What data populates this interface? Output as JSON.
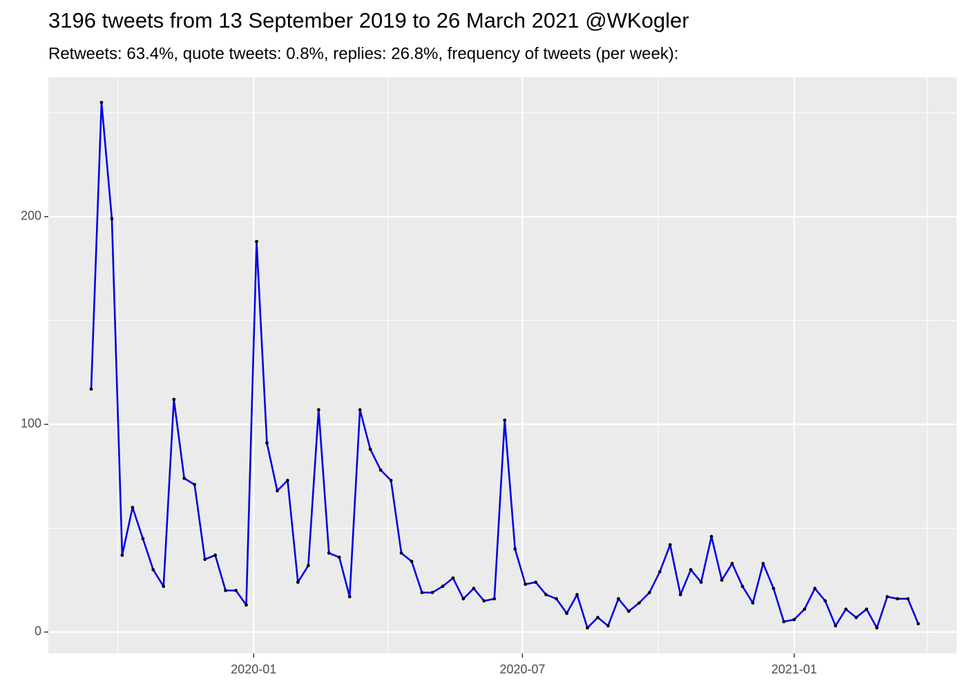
{
  "chart_data": {
    "type": "line",
    "title": "3196 tweets from 13 September 2019 to 26 March 2021 @WKogler",
    "subtitle": "Retweets: 63.4%, quote tweets: 0.8%, replies: 26.8%, frequency of tweets (per week):",
    "x": [
      "2019-09-13",
      "2019-09-20",
      "2019-09-27",
      "2019-10-04",
      "2019-10-11",
      "2019-10-18",
      "2019-10-25",
      "2019-11-01",
      "2019-11-08",
      "2019-11-15",
      "2019-11-22",
      "2019-11-29",
      "2019-12-06",
      "2019-12-13",
      "2019-12-20",
      "2019-12-27",
      "2020-01-03",
      "2020-01-10",
      "2020-01-17",
      "2020-01-24",
      "2020-01-31",
      "2020-02-07",
      "2020-02-14",
      "2020-02-21",
      "2020-02-28",
      "2020-03-06",
      "2020-03-13",
      "2020-03-20",
      "2020-03-27",
      "2020-04-03",
      "2020-04-10",
      "2020-04-17",
      "2020-04-24",
      "2020-05-01",
      "2020-05-08",
      "2020-05-15",
      "2020-05-22",
      "2020-05-29",
      "2020-06-05",
      "2020-06-12",
      "2020-06-19",
      "2020-06-26",
      "2020-07-03",
      "2020-07-10",
      "2020-07-17",
      "2020-07-24",
      "2020-07-31",
      "2020-08-07",
      "2020-08-14",
      "2020-08-21",
      "2020-08-28",
      "2020-09-04",
      "2020-09-11",
      "2020-09-18",
      "2020-09-25",
      "2020-10-02",
      "2020-10-09",
      "2020-10-16",
      "2020-10-23",
      "2020-10-30",
      "2020-11-06",
      "2020-11-13",
      "2020-11-20",
      "2020-11-27",
      "2020-12-04",
      "2020-12-11",
      "2020-12-18",
      "2020-12-25",
      "2021-01-01",
      "2021-01-08",
      "2021-01-15",
      "2021-01-22",
      "2021-01-29",
      "2021-02-05",
      "2021-02-12",
      "2021-02-19",
      "2021-02-26",
      "2021-03-05",
      "2021-03-12",
      "2021-03-19",
      "2021-03-26"
    ],
    "series": [
      {
        "color": "#0000e6",
        "point_color": "#000000",
        "values": [
          117,
          255,
          199,
          37,
          60,
          45,
          30,
          22,
          112,
          74,
          71,
          35,
          37,
          20,
          20,
          13,
          188,
          91,
          68,
          73,
          24,
          32,
          107,
          38,
          36,
          17,
          107,
          88,
          78,
          73,
          38,
          34,
          19,
          19,
          22,
          26,
          16,
          21,
          15,
          16,
          102,
          40,
          23,
          24,
          18,
          16,
          9,
          18,
          2,
          7,
          3,
          16,
          10,
          14,
          19,
          29,
          42,
          18,
          30,
          24,
          46,
          25,
          33,
          22,
          14,
          33,
          21,
          5,
          6,
          11,
          21,
          15,
          3,
          11,
          7,
          11,
          2,
          17,
          16,
          16,
          4
        ]
      }
    ],
    "xlim": [
      "2019-08-15",
      "2021-04-21"
    ],
    "xticks": [
      {
        "value": "2020-01-01",
        "label": "2020-01"
      },
      {
        "value": "2020-07-01",
        "label": "2020-07"
      },
      {
        "value": "2021-01-01",
        "label": "2021-01"
      }
    ],
    "x_minor_grid": [
      "2019-10-01",
      "2020-04-01",
      "2020-10-01",
      "2021-04-01"
    ],
    "ylim": [
      -10.3,
      267.1
    ],
    "yticks": [
      0,
      100,
      200
    ],
    "y_minor_grid": [
      50,
      150,
      250
    ],
    "grid": true
  }
}
